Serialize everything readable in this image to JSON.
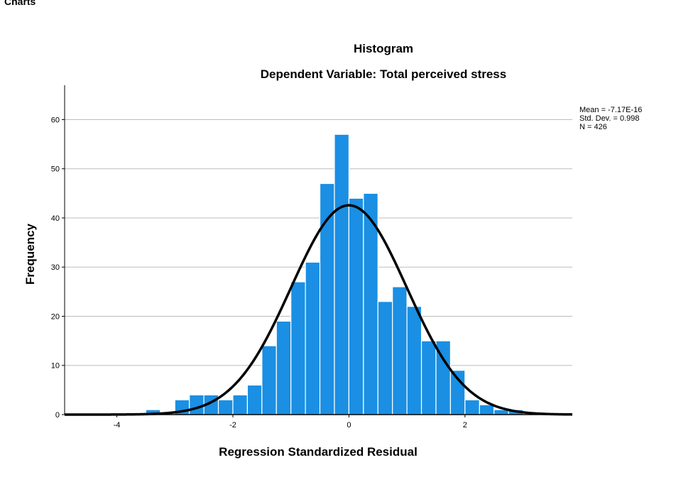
{
  "section": {
    "title": "Charts"
  },
  "colors": {
    "bar": "#1a8fe3",
    "bar_edge": "#ffffff",
    "curve": "#000000",
    "grid": "#bdbdbd",
    "axis": "#000000"
  },
  "chart_data": {
    "type": "bar",
    "title": "Histogram",
    "subtitle": "Dependent Variable: Total perceived stress",
    "xlabel": "Regression Standardized Residual",
    "ylabel": "Frequency",
    "xlim": [
      -4.9,
      3.85
    ],
    "ylim": [
      0,
      67
    ],
    "grid": true,
    "bin_width": 0.25,
    "bins": [
      {
        "start": -3.5,
        "count": 1
      },
      {
        "start": -3.25,
        "count": 0
      },
      {
        "start": -3.0,
        "count": 3
      },
      {
        "start": -2.75,
        "count": 4
      },
      {
        "start": -2.5,
        "count": 4
      },
      {
        "start": -2.25,
        "count": 3
      },
      {
        "start": -2.0,
        "count": 4
      },
      {
        "start": -1.75,
        "count": 6
      },
      {
        "start": -1.5,
        "count": 14
      },
      {
        "start": -1.25,
        "count": 19
      },
      {
        "start": -1.0,
        "count": 27
      },
      {
        "start": -0.75,
        "count": 31
      },
      {
        "start": -0.5,
        "count": 47
      },
      {
        "start": -0.25,
        "count": 57
      },
      {
        "start": 0.0,
        "count": 44
      },
      {
        "start": 0.25,
        "count": 45
      },
      {
        "start": 0.5,
        "count": 23
      },
      {
        "start": 0.75,
        "count": 26
      },
      {
        "start": 1.0,
        "count": 22
      },
      {
        "start": 1.25,
        "count": 15
      },
      {
        "start": 1.5,
        "count": 15
      },
      {
        "start": 1.75,
        "count": 9
      },
      {
        "start": 2.0,
        "count": 3
      },
      {
        "start": 2.25,
        "count": 2
      },
      {
        "start": 2.5,
        "count": 1
      },
      {
        "start": 2.75,
        "count": 1
      }
    ],
    "x_ticks": [
      {
        "value": -4,
        "label": "-4"
      },
      {
        "value": -2,
        "label": "-2"
      },
      {
        "value": 0,
        "label": "0"
      },
      {
        "value": 2,
        "label": "2"
      }
    ],
    "y_ticks": [
      {
        "value": 0,
        "label": "0"
      },
      {
        "value": 10,
        "label": "10"
      },
      {
        "value": 20,
        "label": "20"
      },
      {
        "value": 30,
        "label": "30"
      },
      {
        "value": 40,
        "label": "40"
      },
      {
        "value": 50,
        "label": "50"
      },
      {
        "value": 60,
        "label": "60"
      }
    ],
    "normal_curve": {
      "mean": -7.17e-16,
      "sd": 0.998,
      "n": 426
    },
    "stats": {
      "mean": "Mean = -7.17E-16",
      "std_dev": "Std. Dev. = 0.998",
      "n": "N = 426"
    },
    "legend_position": "top-right"
  }
}
